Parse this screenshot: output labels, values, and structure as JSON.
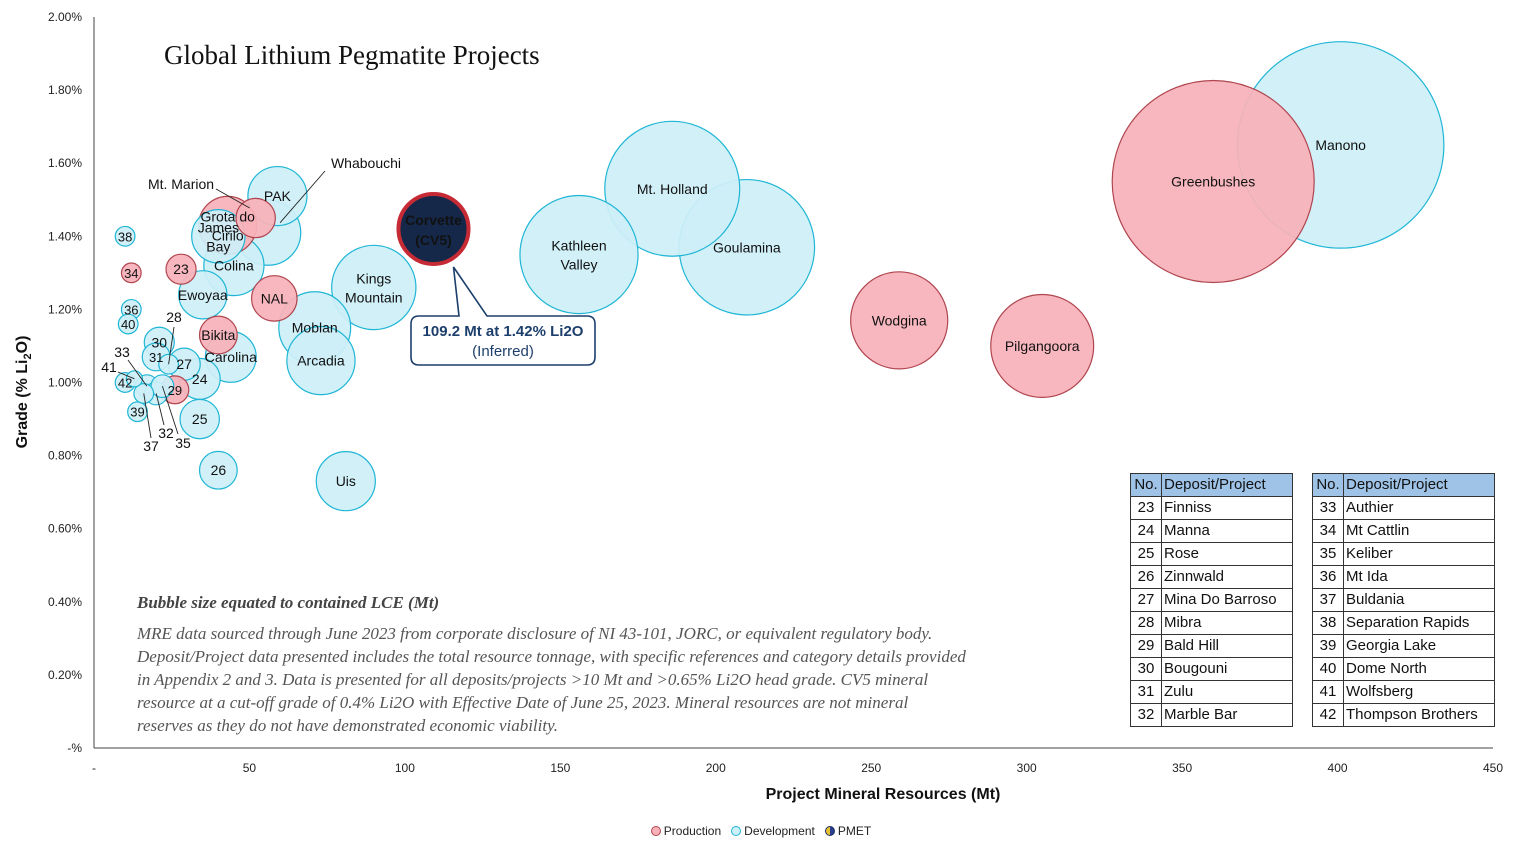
{
  "chart_data": {
    "type": "scatter",
    "title": "Global Lithium Pegmatite Projects",
    "xlabel": "Project Mineral Resources (Mt)",
    "ylabel_main": "Grade (% Li",
    "ylabel_sub": "2",
    "ylabel_end": "O)",
    "xlim": [
      0,
      450
    ],
    "ylim": [
      0,
      2.0
    ],
    "x_ticks": [
      {
        "v": 0,
        "label": "-"
      },
      {
        "v": 50,
        "label": "50"
      },
      {
        "v": 100,
        "label": "100"
      },
      {
        "v": 150,
        "label": "150"
      },
      {
        "v": 200,
        "label": "200"
      },
      {
        "v": 250,
        "label": "250"
      },
      {
        "v": 300,
        "label": "300"
      },
      {
        "v": 350,
        "label": "350"
      },
      {
        "v": 400,
        "label": "400"
      },
      {
        "v": 450,
        "label": "450"
      }
    ],
    "y_ticks": [
      {
        "v": 0,
        "label": "-%"
      },
      {
        "v": 0.2,
        "label": "0.20%"
      },
      {
        "v": 0.4,
        "label": "0.40%"
      },
      {
        "v": 0.6,
        "label": "0.60%"
      },
      {
        "v": 0.8,
        "label": "0.80%"
      },
      {
        "v": 1.0,
        "label": "1.00%"
      },
      {
        "v": 1.2,
        "label": "1.20%"
      },
      {
        "v": 1.4,
        "label": "1.40%"
      },
      {
        "v": 1.6,
        "label": "1.60%"
      },
      {
        "v": 1.8,
        "label": "1.80%"
      },
      {
        "v": 2.0,
        "label": "2.00%"
      }
    ],
    "bubble_size": "contained LCE (Mt)",
    "colors": {
      "Production": "#f7b1b9",
      "Development": "#cdeff8",
      "PMET": "#15284a",
      "production_stroke": "#b0454f",
      "development_stroke": "#1fb6d5",
      "pmet_stroke": "#c62a34"
    },
    "series": [
      {
        "name": "Production",
        "points": [
          {
            "label": "Greenbushes",
            "x": 360,
            "y": 1.55,
            "lce": 3.16
          },
          {
            "label": "Wodgina",
            "x": 259,
            "y": 1.17,
            "lce": 0.73
          },
          {
            "label": "Pilgangoora",
            "x": 305,
            "y": 1.1,
            "lce": 0.82
          },
          {
            "label": "Grota do Cirilo",
            "x": 43,
            "y": 1.43,
            "lce": 0.26
          },
          {
            "label": "NAL",
            "x": 58,
            "y": 1.23,
            "lce": 0.16
          },
          {
            "label": "Mt. Marion",
            "x": 52,
            "y": 1.45,
            "lce": 0.12
          },
          {
            "label": "Bikita",
            "x": 40,
            "y": 1.13,
            "lce": 0.11
          },
          {
            "label": "23",
            "x": 28,
            "y": 1.31,
            "lce": 0.07
          },
          {
            "label": "34",
            "x": 12,
            "y": 1.3,
            "lce": 0.03
          },
          {
            "label": "29",
            "x": 26,
            "y": 0.98,
            "lce": 0.06
          }
        ]
      },
      {
        "name": "Development",
        "points": [
          {
            "label": "Manono",
            "x": 401,
            "y": 1.65,
            "lce": 3.3
          },
          {
            "label": "Mt. Holland",
            "x": 186,
            "y": 1.53,
            "lce": 1.41
          },
          {
            "label": "Goulamina",
            "x": 210,
            "y": 1.37,
            "lce": 1.42
          },
          {
            "label": "Kathleen Valley",
            "x": 156,
            "y": 1.35,
            "lce": 1.08
          },
          {
            "label": "Kings Mountain",
            "x": 90,
            "y": 1.26,
            "lce": 0.55
          },
          {
            "label": "Moblan",
            "x": 71,
            "y": 1.15,
            "lce": 0.4
          },
          {
            "label": "Arcadia",
            "x": 73,
            "y": 1.06,
            "lce": 0.36
          },
          {
            "label": "Uis",
            "x": 81,
            "y": 0.73,
            "lce": 0.27
          },
          {
            "label": "PAK",
            "x": 59,
            "y": 1.51,
            "lce": 0.27
          },
          {
            "label": "Whabouchi",
            "x": 56,
            "y": 1.41,
            "lce": 0.33
          },
          {
            "label": "Colina",
            "x": 45,
            "y": 1.32,
            "lce": 0.28
          },
          {
            "label": "James Bay",
            "x": 40,
            "y": 1.4,
            "lce": 0.22
          },
          {
            "label": "Ewoyaa",
            "x": 35,
            "y": 1.24,
            "lce": 0.18
          },
          {
            "label": "Carolina",
            "x": 44,
            "y": 1.07,
            "lce": 0.2
          },
          {
            "label": "24",
            "x": 34,
            "y": 1.01,
            "lce": 0.13
          },
          {
            "label": "25",
            "x": 34,
            "y": 0.9,
            "lce": 0.12
          },
          {
            "label": "26",
            "x": 40,
            "y": 0.76,
            "lce": 0.11
          },
          {
            "label": "27",
            "x": 29,
            "y": 1.05,
            "lce": 0.08
          },
          {
            "label": "30",
            "x": 21,
            "y": 1.11,
            "lce": 0.07
          },
          {
            "label": "31",
            "x": 20,
            "y": 1.07,
            "lce": 0.06
          },
          {
            "label": "38",
            "x": 10,
            "y": 1.4,
            "lce": 0.03
          },
          {
            "label": "36",
            "x": 12,
            "y": 1.2,
            "lce": 0.03
          },
          {
            "label": "40",
            "x": 11,
            "y": 1.16,
            "lce": 0.03
          },
          {
            "label": "42",
            "x": 10,
            "y": 1.0,
            "lce": 0.03
          },
          {
            "label": "39",
            "x": 14,
            "y": 0.92,
            "lce": 0.03
          },
          {
            "label": "41",
            "x": 13,
            "y": 1.01,
            "lce": 0.02
          },
          {
            "label": "33",
            "x": 17,
            "y": 0.99,
            "lce": 0.04
          },
          {
            "label": "37",
            "x": 16,
            "y": 0.97,
            "lce": 0.03
          },
          {
            "label": "32",
            "x": 20,
            "y": 0.97,
            "lce": 0.04
          },
          {
            "label": "35",
            "x": 22,
            "y": 0.99,
            "lce": 0.04
          },
          {
            "label": "28",
            "x": 24,
            "y": 1.05,
            "lce": 0.03
          }
        ]
      },
      {
        "name": "PMET",
        "points": [
          {
            "label_line1": "Corvette",
            "label_line2": "(CV5)",
            "x": 109.2,
            "y": 1.42,
            "lce": 0.38
          }
        ]
      }
    ],
    "annotation": {
      "line1": "109.2 Mt at 1.42% Li2O",
      "line2": "(Inferred)"
    },
    "legend": [
      {
        "name": "Production",
        "color": "#f7b1b9",
        "stroke": "#b0454f"
      },
      {
        "name": "Development",
        "color": "#cdeff8",
        "stroke": "#1fb6d5"
      },
      {
        "name": "PMET",
        "color": "#15284a",
        "stroke": "#e8c22a"
      }
    ],
    "legend_position": "bottom"
  },
  "notes": {
    "bubble": "Bubble size equated to contained LCE (Mt)",
    "lines": [
      "MRE data sourced through June 2023 from corporate disclosure of NI 43-101, JORC, or equivalent regulatory body.",
      "Deposit/Project data presented includes the total resource tonnage, with specific references and category details provided",
      "in Appendix 2 and 3. Data is presented for all deposits/projects >10 Mt and >0.65% Li2O head grade. CV5 mineral",
      "resource at a cut-off grade of 0.4% Li2O with Effective Date of June 25, 2023. Mineral resources are not mineral",
      "reserves as they do not have demonstrated economic viability."
    ]
  },
  "tables": {
    "header_no": "No.",
    "header_name": "Deposit/Project",
    "left": [
      {
        "no": "23",
        "name": "Finniss"
      },
      {
        "no": "24",
        "name": "Manna"
      },
      {
        "no": "25",
        "name": "Rose"
      },
      {
        "no": "26",
        "name": "Zinnwald"
      },
      {
        "no": "27",
        "name": "Mina Do Barroso"
      },
      {
        "no": "28",
        "name": "Mibra"
      },
      {
        "no": "29",
        "name": "Bald Hill"
      },
      {
        "no": "30",
        "name": "Bougouni"
      },
      {
        "no": "31",
        "name": "Zulu"
      },
      {
        "no": "32",
        "name": "Marble Bar"
      }
    ],
    "right": [
      {
        "no": "33",
        "name": "Authier"
      },
      {
        "no": "34",
        "name": "Mt Cattlin"
      },
      {
        "no": "35",
        "name": "Keliber"
      },
      {
        "no": "36",
        "name": "Mt Ida"
      },
      {
        "no": "37",
        "name": "Buldania"
      },
      {
        "no": "38",
        "name": "Separation Rapids"
      },
      {
        "no": "39",
        "name": "Georgia Lake"
      },
      {
        "no": "40",
        "name": "Dome North"
      },
      {
        "no": "41",
        "name": "Wolfsberg"
      },
      {
        "no": "42",
        "name": "Thompson Brothers"
      }
    ]
  }
}
